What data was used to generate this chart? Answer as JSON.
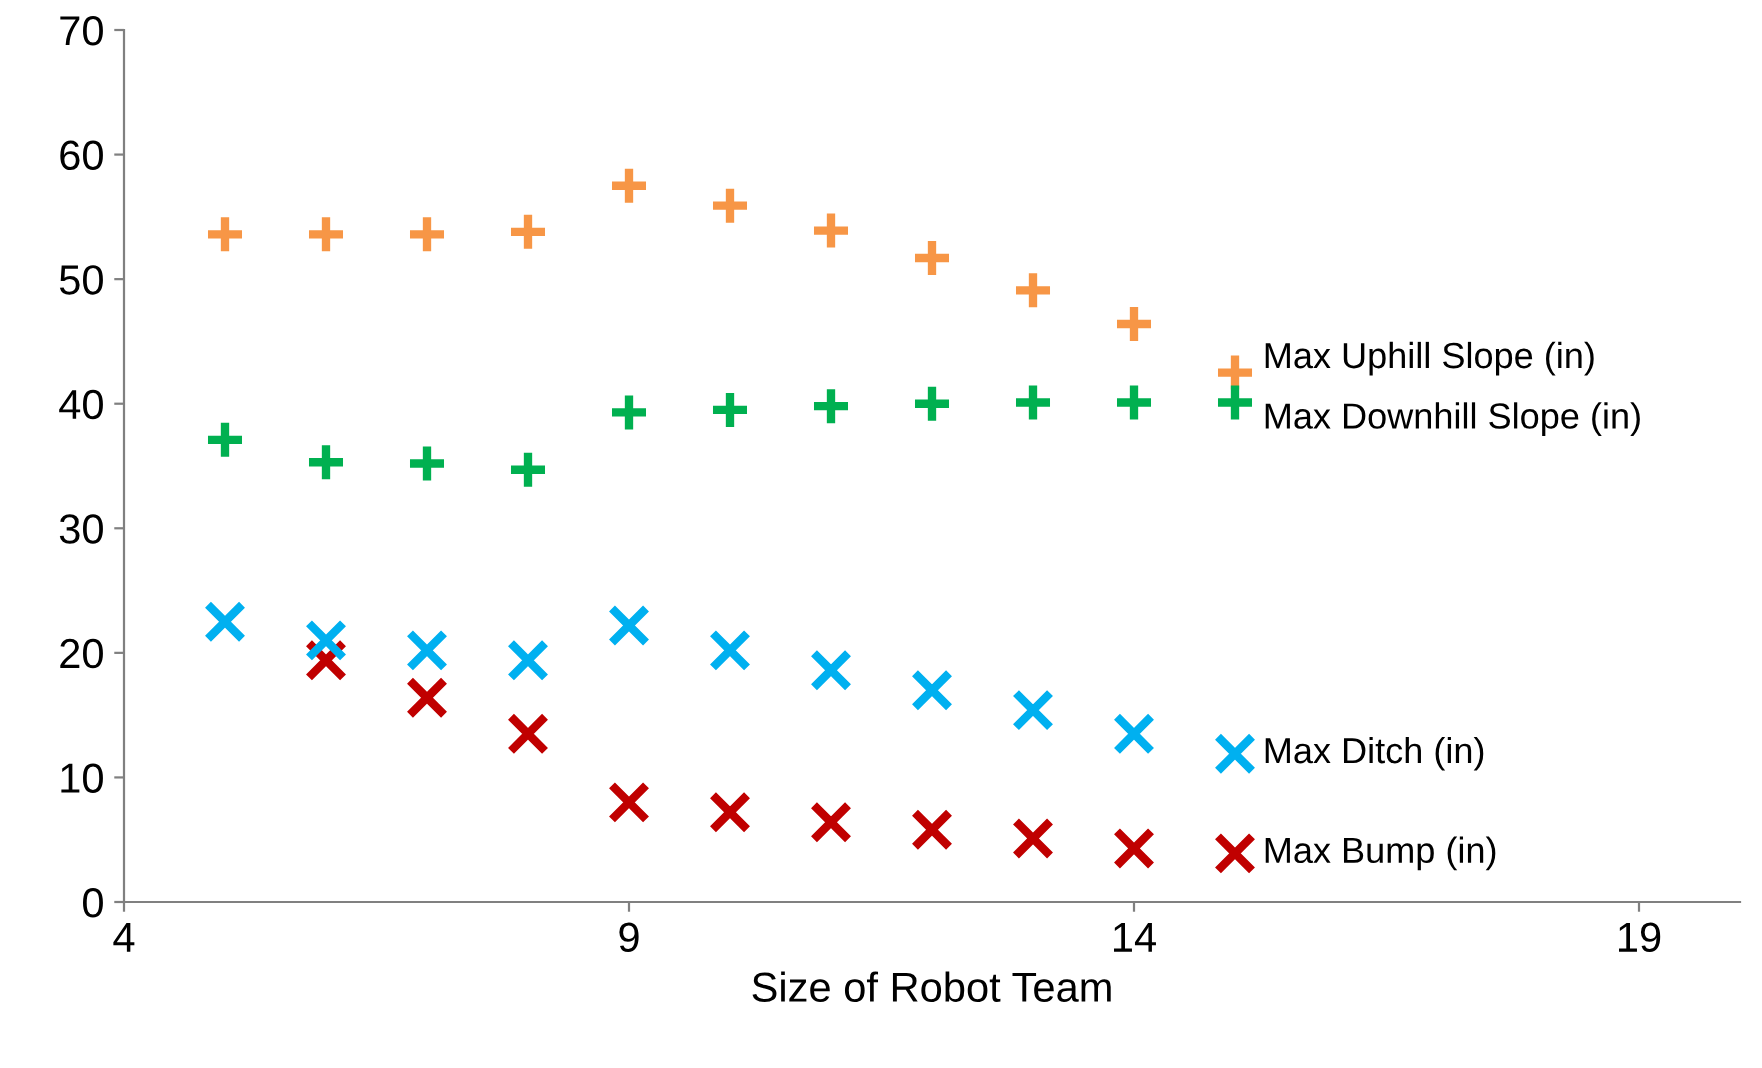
{
  "chart_data": {
    "type": "scatter",
    "xlabel": "Size of Robot Team",
    "xlim": [
      4,
      20
    ],
    "xticks": [
      4,
      9,
      14,
      19
    ],
    "ylim": [
      0,
      70
    ],
    "yticks": [
      0,
      10,
      20,
      30,
      40,
      50,
      60,
      70
    ],
    "grid": false,
    "legend": false,
    "x": [
      5,
      6,
      7,
      8,
      9,
      10,
      11,
      12,
      13,
      14,
      15
    ],
    "series": [
      {
        "name": "Max Uphill Slope (in)",
        "color": "#f79646",
        "marker": "plus",
        "values": [
          53.6,
          53.6,
          53.6,
          53.8,
          57.5,
          55.9,
          53.9,
          51.7,
          49.1,
          46.4,
          42.5
        ]
      },
      {
        "name": "Max Downhill Slope (in)",
        "color": "#00b050",
        "marker": "plus",
        "values": [
          37.1,
          35.3,
          35.2,
          34.7,
          39.3,
          39.5,
          39.8,
          40.0,
          40.1,
          40.1,
          40.1
        ]
      },
      {
        "name": "Max Bump (in)",
        "color": "#c00000",
        "marker": "cross",
        "values": [
          null,
          19.4,
          16.4,
          13.5,
          8.0,
          7.2,
          6.4,
          5.8,
          5.1,
          4.3,
          3.9
        ]
      },
      {
        "name": "Max Ditch (in)",
        "color": "#00b0f0",
        "marker": "cross",
        "values": [
          22.5,
          21.0,
          20.2,
          19.4,
          22.2,
          20.2,
          18.6,
          17.0,
          15.4,
          13.5,
          11.9
        ]
      }
    ]
  }
}
